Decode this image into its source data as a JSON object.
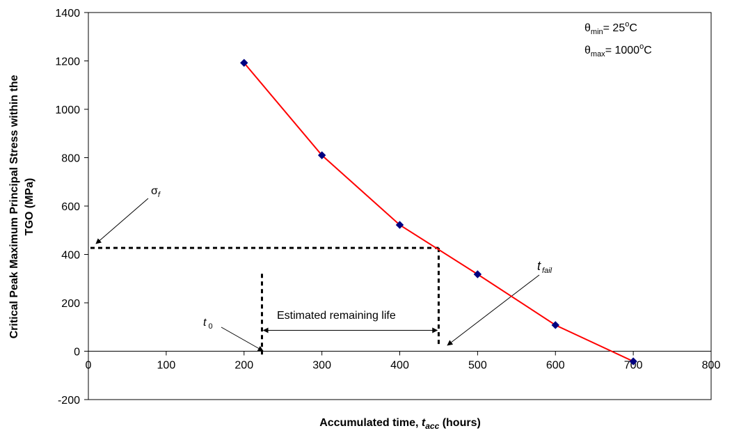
{
  "chart_data": {
    "type": "line",
    "title": "",
    "xlabel_parts": {
      "prefix": "Accumulated time, ",
      "var": "t",
      "sub": "acc",
      "suffix": " (hours)"
    },
    "ylabel_line1": "Critical Peak Maximum Principal Stress within the",
    "ylabel_line2": "TGO (MPa)",
    "xlim": [
      0,
      800
    ],
    "ylim": [
      -200,
      1400
    ],
    "xticks": [
      0,
      100,
      200,
      300,
      400,
      500,
      600,
      700,
      800
    ],
    "yticks": [
      -200,
      0,
      200,
      400,
      600,
      800,
      1000,
      1200,
      1400
    ],
    "grid": false,
    "legend": "none",
    "series": [
      {
        "x": [
          200,
          300,
          400,
          500,
          600,
          700
        ],
        "values": [
          1192,
          810,
          522,
          318,
          108,
          -42
        ],
        "line_color": "#ff0000",
        "marker_color": "#000080"
      }
    ],
    "guides": {
      "sigma_f_stress": 427,
      "t0_time": 223,
      "t0_top": 320,
      "tfail_time": 450
    },
    "annotations": {
      "theta_min": {
        "sym": "θ",
        "sub": "min",
        "text": "= 25",
        "sup": "o",
        "unit": "C"
      },
      "theta_max": {
        "sym": "θ",
        "sub": "max",
        "text": "= 1000",
        "sup": "o",
        "unit": "C"
      },
      "sigma_f": {
        "sym": "σ",
        "sub": "f"
      },
      "t0": {
        "var": "t",
        "sub": "0"
      },
      "tfail": {
        "var": "t",
        "sub": "fail"
      },
      "remaining_life": "Estimated remaining life"
    }
  }
}
